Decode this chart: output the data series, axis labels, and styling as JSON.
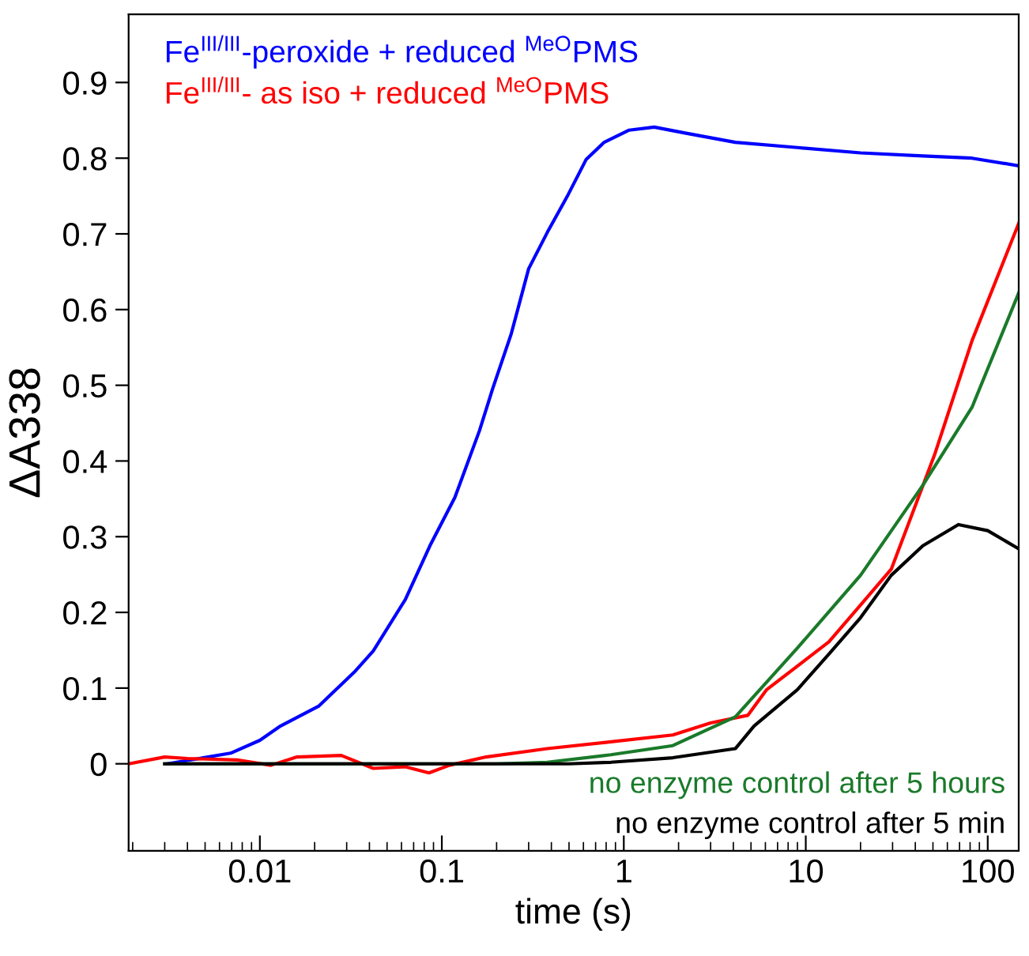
{
  "chart_data": {
    "type": "line",
    "xlabel": "time (s)",
    "ylabel": "ΔA338",
    "log": "x",
    "grid": false,
    "legend": false,
    "marker": "none",
    "line_style": "solid",
    "xlim": [
      0.0019,
      148
    ],
    "xticks": [
      {
        "value": 0.01,
        "label": "0.01"
      },
      {
        "value": 0.1,
        "label": "0.1"
      },
      {
        "value": 1,
        "label": "1"
      },
      {
        "value": 10,
        "label": "10"
      },
      {
        "value": 100,
        "label": "100"
      }
    ],
    "ylim": [
      -0.115,
      0.99
    ],
    "yticks": [
      0,
      0.1,
      0.2,
      0.3,
      0.4,
      0.5,
      0.6,
      0.7,
      0.8,
      0.9
    ],
    "series": [
      {
        "name": "Fe$^{III/III}$-peroxide + reduced $^{MeO}$PMS",
        "color": "#0000ff",
        "x": [
          0.0031,
          0.0069,
          0.01,
          0.013,
          0.021,
          0.033,
          0.042,
          0.063,
          0.086,
          0.118,
          0.161,
          0.19,
          0.24,
          0.3,
          0.38,
          0.49,
          0.62,
          0.78,
          1.07,
          1.47,
          2.2,
          4.1,
          9.0,
          20,
          44,
          82,
          148
        ],
        "values": [
          0,
          0.014,
          0.031,
          0.05,
          0.076,
          0.121,
          0.149,
          0.217,
          0.288,
          0.352,
          0.44,
          0.495,
          0.567,
          0.654,
          0.702,
          0.75,
          0.798,
          0.821,
          0.837,
          0.841,
          0.833,
          0.821,
          0.814,
          0.807,
          0.803,
          0.8,
          0.79
        ]
      },
      {
        "name": "Fe$^{III/III}$- as iso + reduced $^{MeO}$PMS",
        "color": "#ff0000",
        "x": [
          0.0019,
          0.003,
          0.004,
          0.0075,
          0.0115,
          0.016,
          0.028,
          0.042,
          0.063,
          0.085,
          0.11,
          0.175,
          0.38,
          0.85,
          1.86,
          3.0,
          4.8,
          6.1,
          13.4,
          29.5,
          51,
          82,
          148
        ],
        "values": [
          0,
          0.009,
          0.007,
          0.005,
          -0.002,
          0.009,
          0.011,
          -0.006,
          -0.004,
          -0.012,
          -0.002,
          0.009,
          0.02,
          0.029,
          0.038,
          0.054,
          0.064,
          0.098,
          0.161,
          0.257,
          0.408,
          0.559,
          0.714
        ]
      },
      {
        "name": "no enzyme control after 5 hours",
        "color": "#1a7a2a",
        "x": [
          0.003,
          0.2,
          0.38,
          0.85,
          1.86,
          3.0,
          4.1,
          9.0,
          20,
          44,
          82,
          148
        ],
        "values": [
          0,
          0,
          0.002,
          0.012,
          0.024,
          0.047,
          0.062,
          0.153,
          0.249,
          0.368,
          0.471,
          0.622
        ]
      },
      {
        "name": "no enzyme control after 5 min",
        "color": "#000000",
        "x": [
          0.003,
          0.5,
          0.85,
          1.86,
          4.1,
          5.2,
          9.0,
          13.4,
          20,
          29.5,
          44,
          69,
          100,
          148
        ],
        "values": [
          0,
          0,
          0.002,
          0.008,
          0.02,
          0.05,
          0.098,
          0.145,
          0.193,
          0.249,
          0.288,
          0.316,
          0.308,
          0.284
        ]
      }
    ]
  }
}
